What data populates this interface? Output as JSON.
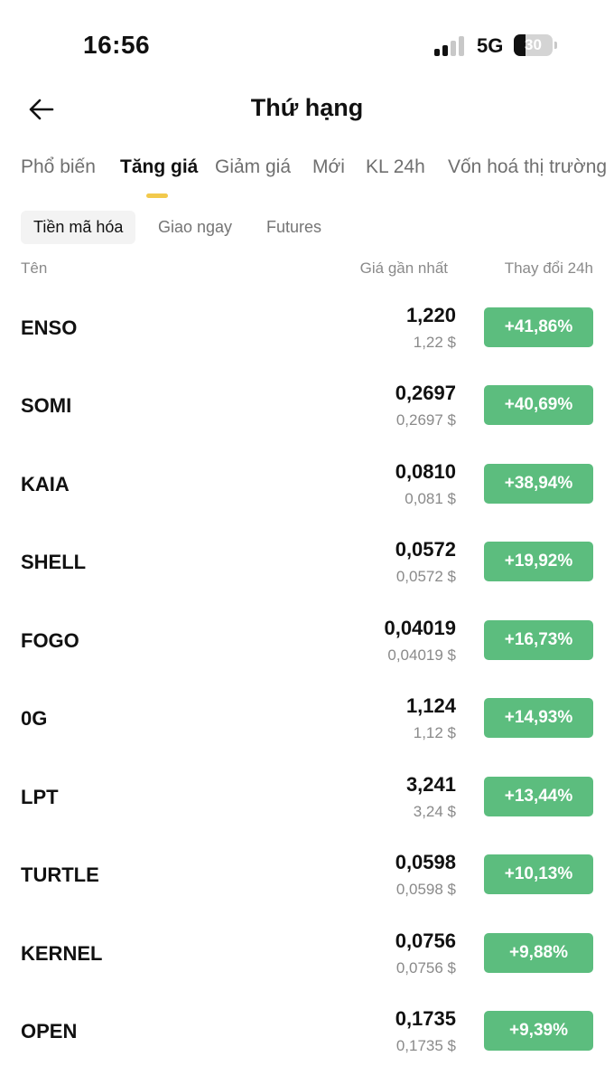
{
  "status_bar": {
    "time": "16:56",
    "network": "5G",
    "battery_level": "30",
    "battery_fraction": 0.3
  },
  "header": {
    "title": "Thứ hạng",
    "back_icon": "arrow-left-icon"
  },
  "main_tabs": [
    {
      "label": "Phổ biến",
      "active": false
    },
    {
      "label": "Tăng giá",
      "active": true
    },
    {
      "label": "Giảm giá",
      "active": false
    },
    {
      "label": "Mới",
      "active": false
    },
    {
      "label": "KL 24h",
      "active": false
    },
    {
      "label": "Vốn hoá thị trường",
      "active": false
    }
  ],
  "sub_tabs": [
    {
      "label": "Tiền mã hóa",
      "active": true
    },
    {
      "label": "Giao ngay",
      "active": false
    },
    {
      "label": "Futures",
      "active": false
    }
  ],
  "columns": {
    "name": "Tên",
    "last_price": "Giá gần nhất",
    "change_24h": "Thay đổi 24h"
  },
  "rows": [
    {
      "name": "ENSO",
      "price": "1,220",
      "usd": "1,22 $",
      "change": "+41,86%"
    },
    {
      "name": "SOMI",
      "price": "0,2697",
      "usd": "0,2697 $",
      "change": "+40,69%"
    },
    {
      "name": "KAIA",
      "price": "0,0810",
      "usd": "0,081 $",
      "change": "+38,94%"
    },
    {
      "name": "SHELL",
      "price": "0,0572",
      "usd": "0,0572 $",
      "change": "+19,92%"
    },
    {
      "name": "FOGO",
      "price": "0,04019",
      "usd": "0,04019 $",
      "change": "+16,73%"
    },
    {
      "name": "0G",
      "price": "1,124",
      "usd": "1,12 $",
      "change": "+14,93%"
    },
    {
      "name": "LPT",
      "price": "3,241",
      "usd": "3,24 $",
      "change": "+13,44%"
    },
    {
      "name": "TURTLE",
      "price": "0,0598",
      "usd": "0,0598 $",
      "change": "+10,13%"
    },
    {
      "name": "KERNEL",
      "price": "0,0756",
      "usd": "0,0756 $",
      "change": "+9,88%"
    },
    {
      "name": "OPEN",
      "price": "0,1735",
      "usd": "0,1735 $",
      "change": "+9,39%"
    }
  ],
  "colors": {
    "positive_change": "#5cbd7e",
    "active_tab_indicator": "#f2c94c"
  }
}
